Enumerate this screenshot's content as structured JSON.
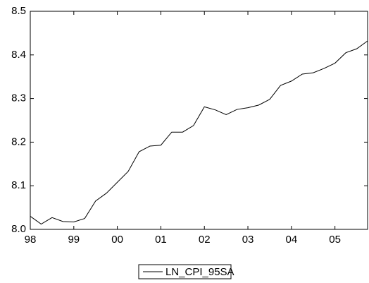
{
  "chart_data": {
    "type": "line",
    "categories": [
      "98",
      null,
      null,
      null,
      "99",
      null,
      null,
      null,
      "00",
      null,
      null,
      null,
      "01",
      null,
      null,
      null,
      "02",
      null,
      null,
      null,
      "03",
      null,
      null,
      null,
      "04",
      null,
      null,
      null,
      "05",
      null,
      null,
      null
    ],
    "series": [
      {
        "name": "LN_CPI_95SA",
        "color": "#000000",
        "values": [
          8.03,
          8.012,
          8.027,
          8.018,
          8.017,
          8.025,
          8.065,
          8.083,
          8.108,
          8.133,
          8.178,
          8.191,
          8.193,
          8.223,
          8.223,
          8.238,
          8.281,
          8.274,
          8.263,
          8.275,
          8.279,
          8.285,
          8.298,
          8.33,
          8.34,
          8.356,
          8.359,
          8.369,
          8.381,
          8.405,
          8.414,
          8.432
        ]
      }
    ],
    "ylim": [
      8.0,
      8.5
    ],
    "yticks": [
      {
        "value": 8.0,
        "label": "8.0"
      },
      {
        "value": 8.1,
        "label": "8.1"
      },
      {
        "value": 8.2,
        "label": "8.2"
      },
      {
        "value": 8.3,
        "label": "8.3"
      },
      {
        "value": 8.4,
        "label": "8.4"
      },
      {
        "value": 8.5,
        "label": "8.5"
      }
    ],
    "grid": false,
    "legend": "bottom"
  }
}
